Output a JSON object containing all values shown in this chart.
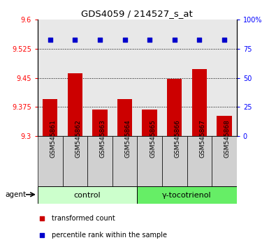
{
  "title": "GDS4059 / 214527_s_at",
  "samples": [
    "GSM545861",
    "GSM545862",
    "GSM545863",
    "GSM545864",
    "GSM545865",
    "GSM545866",
    "GSM545867",
    "GSM545868"
  ],
  "bar_values": [
    9.395,
    9.462,
    9.368,
    9.395,
    9.368,
    9.447,
    9.473,
    9.352
  ],
  "percentile_values": [
    83,
    83,
    83,
    83,
    83,
    83,
    83,
    83
  ],
  "bar_color": "#cc0000",
  "percentile_color": "#0000cc",
  "ylim_left": [
    9.3,
    9.6
  ],
  "yticks_left": [
    9.3,
    9.375,
    9.45,
    9.525,
    9.6
  ],
  "ylim_right": [
    0,
    100
  ],
  "yticks_right": [
    0,
    25,
    50,
    75,
    100
  ],
  "ytick_labels_right": [
    "0",
    "25",
    "50",
    "75",
    "100%"
  ],
  "grid_values": [
    9.375,
    9.45,
    9.525
  ],
  "groups": [
    {
      "label": "control",
      "indices": [
        0,
        1,
        2,
        3
      ],
      "color": "#ccffcc"
    },
    {
      "label": "γ-tocotrienol",
      "indices": [
        4,
        5,
        6,
        7
      ],
      "color": "#66ee66"
    }
  ],
  "agent_label": "agent",
  "legend_items": [
    {
      "label": "transformed count",
      "color": "#cc0000"
    },
    {
      "label": "percentile rank within the sample",
      "color": "#0000cc"
    }
  ],
  "bar_width": 0.6,
  "base_value": 9.3,
  "plot_bg_color": "#e8e8e8",
  "label_box_color": "#d0d0d0",
  "title_fontsize": 9.5,
  "tick_fontsize": 7,
  "sample_fontsize": 6.5,
  "group_fontsize": 8
}
